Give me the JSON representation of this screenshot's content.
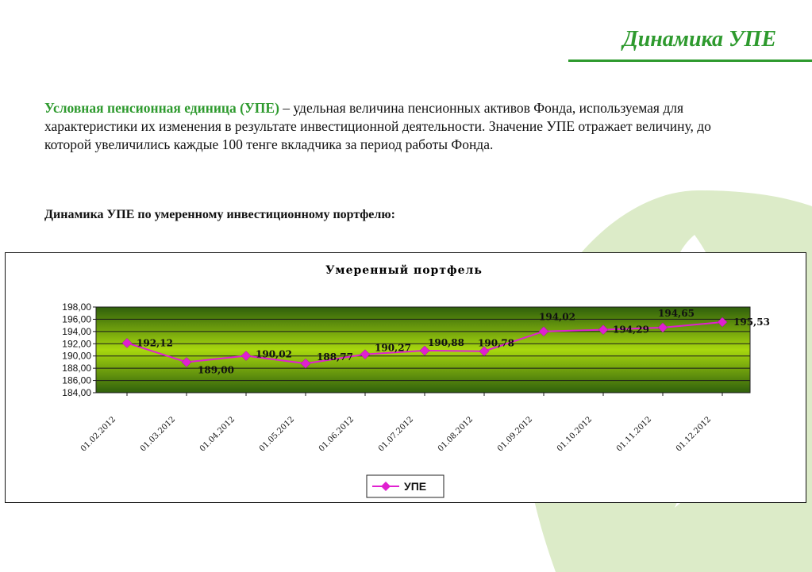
{
  "page": {
    "title": "Динамика УПЕ",
    "intro_term": "Условная пенсионная единица (УПЕ)",
    "intro_text": " – удельная величина пенсионных активов Фонда, используемая для характеристики их изменения в результате инвестиционной деятельности. Значение УПЕ отражает величину, до которой увеличились каждые 100 тенге вкладчика за период работы Фонда.",
    "subtitle": "Динамика УПЕ по умеренному инвестиционному портфелю:"
  },
  "colors": {
    "accent": "#2e9a2e",
    "emblem": "#dcebc8",
    "series": "#e020d0"
  },
  "chart_data": {
    "type": "line",
    "title": "Умеренный портфель",
    "xlabel": "",
    "ylabel": "",
    "ylim": [
      184,
      198
    ],
    "y_ticks": [
      "198,00",
      "196,00",
      "194,00",
      "192,00",
      "190,00",
      "188,00",
      "186,00",
      "184,00"
    ],
    "categories": [
      "01.02.2012",
      "01.03.2012",
      "01.04.2012",
      "01.05.2012",
      "01.06.2012",
      "01.07.2012",
      "01.08.2012",
      "01.09.2012",
      "01.10.2012",
      "01.11.2012",
      "01.12.2012"
    ],
    "series": [
      {
        "name": "УПЕ",
        "values": [
          192.12,
          189.0,
          190.02,
          188.77,
          190.27,
          190.88,
          190.78,
          194.02,
          194.29,
          194.65,
          195.53
        ],
        "labels": [
          "192,12",
          "189,00",
          "190,02",
          "188,77",
          "190,27",
          "190,88",
          "190,78",
          "194,02",
          "194,29",
          "194,65",
          "195,53"
        ]
      }
    ],
    "grid": true,
    "legend": "bottom"
  }
}
